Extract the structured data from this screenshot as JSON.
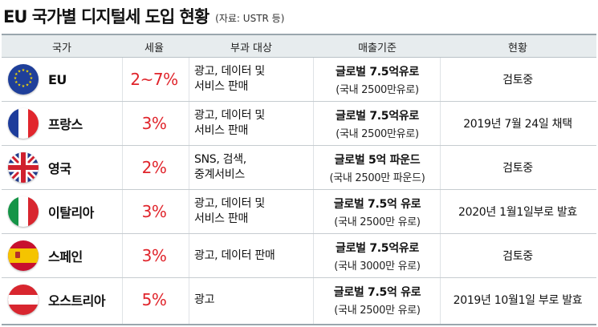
{
  "title": "EU 국가별 디지털세 도입 현황",
  "source": "(자료: USTR 등)",
  "columns": [
    "국가",
    "세율",
    "부과 대상",
    "매출기준",
    "현황"
  ],
  "rows": [
    {
      "country": "EU",
      "flag_icon": "eu-flag-icon",
      "rate": "2~7%",
      "target": "광고, 데이터 및\n서비스 판매",
      "threshold_main": "글로벌 7.5억유로",
      "threshold_sub": "(국내 2500만유로)",
      "status": "검토중"
    },
    {
      "country": "프랑스",
      "flag_icon": "france-flag-icon",
      "rate": "3%",
      "target": "광고, 데이터 및\n서비스 판매",
      "threshold_main": "글로벌 7.5억유로",
      "threshold_sub": "(국내 2500만유로)",
      "status": "2019년 7월 24일 채택"
    },
    {
      "country": "영국",
      "flag_icon": "uk-flag-icon",
      "rate": "2%",
      "target": "SNS, 검색,\n중계서비스",
      "threshold_main": "글로벌 5억 파운드",
      "threshold_sub": "(국내 2500만 파운드)",
      "status": "검토중"
    },
    {
      "country": "이탈리아",
      "flag_icon": "italy-flag-icon",
      "rate": "3%",
      "target": "광고, 데이터 및\n서비스 판매",
      "threshold_main": "글로벌 7.5억 유로",
      "threshold_sub": "(국내 2500만 유로)",
      "status": "2020년 1월1일부로 발효"
    },
    {
      "country": "스페인",
      "flag_icon": "spain-flag-icon",
      "rate": "3%",
      "target": "광고, 데이터 판매",
      "threshold_main": "글로벌 7.5억유로",
      "threshold_sub": "(국내 3000만 유로)",
      "status": "검토중"
    },
    {
      "country": "오스트리아",
      "flag_icon": "austria-flag-icon",
      "rate": "5%",
      "target": "광고",
      "threshold_main": "글로벌 7.5억 유로",
      "threshold_sub": "(국내 2500만 유로)",
      "status": "2019년 10월1일 부로 발효"
    }
  ],
  "colors": {
    "rate_red": "#e0242b",
    "header_bg": "#e7ecee",
    "eu_blue": "#1f3f9a",
    "eu_star": "#f5d800"
  }
}
